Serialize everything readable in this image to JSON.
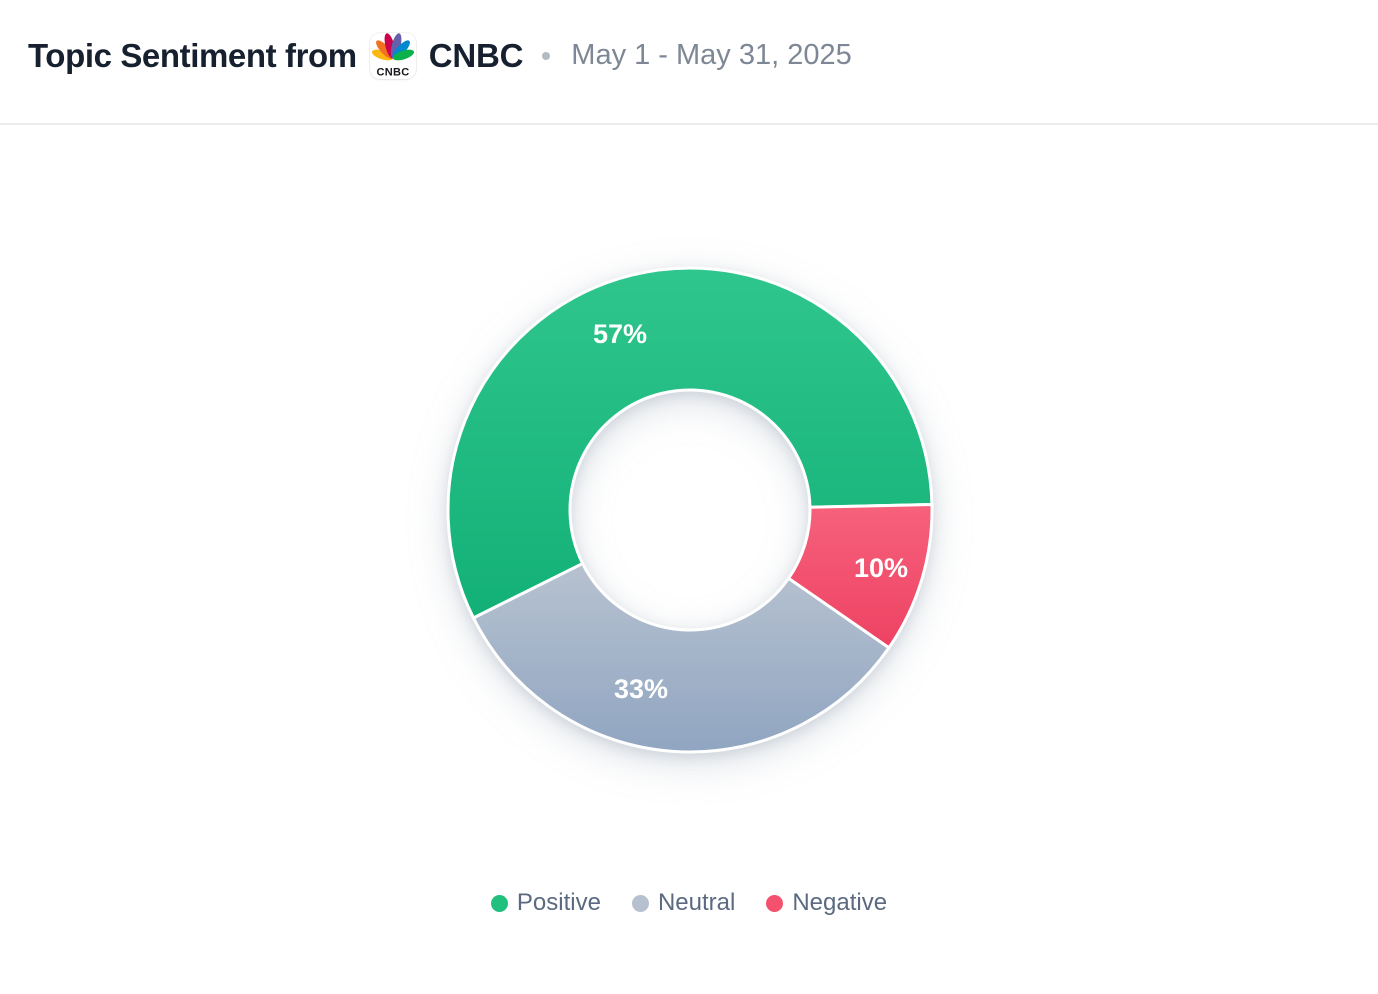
{
  "header": {
    "title": "Topic Sentiment from",
    "source_name": "CNBC",
    "date_range": "May 1 - May 31, 2025",
    "logo": {
      "caption": "CNBC",
      "feather_colors": [
        "#fcb711",
        "#f37021",
        "#cc004c",
        "#6460aa",
        "#0089d0",
        "#0db14b"
      ],
      "caption_color": "#17171c"
    }
  },
  "chart_data": {
    "type": "pie",
    "variant": "donut",
    "title": "Topic Sentiment from CNBC",
    "categories": [
      "Positive",
      "Neutral",
      "Negative"
    ],
    "values": [
      57,
      33,
      10
    ],
    "unit": "%",
    "slices": [
      {
        "label": "Positive",
        "value": 57,
        "pct_label": "57%",
        "color": "#22c07f",
        "gradient_top": "#2fc68d",
        "gradient_bottom": "#12b077",
        "start_deg": 243.5
      },
      {
        "label": "Neutral",
        "value": 33,
        "pct_label": "33%",
        "color": "#b6c0ce",
        "gradient_top": "#b7c2d0",
        "gradient_bottom": "#90a5c1",
        "start_deg": 124.7
      },
      {
        "label": "Negative",
        "value": 10,
        "pct_label": "10%",
        "color": "#f4516f",
        "gradient_top": "#f6617b",
        "gradient_bottom": "#ee4263",
        "start_deg": 88.7
      }
    ],
    "legend_position": "bottom",
    "geometry": {
      "outer_radius": 242,
      "inner_radius": 120,
      "stroke_color": "#ffffff",
      "stroke_width": 3,
      "label_offsets_from_center": {
        "Positive": [
          -70,
          -176
        ],
        "Neutral": [
          -49,
          179
        ],
        "Negative": [
          191,
          58
        ]
      }
    }
  },
  "legend": {
    "items": [
      {
        "label": "Positive",
        "color": "#22c07f"
      },
      {
        "label": "Neutral",
        "color": "#b6c0ce"
      },
      {
        "label": "Negative",
        "color": "#f4516f"
      }
    ]
  }
}
